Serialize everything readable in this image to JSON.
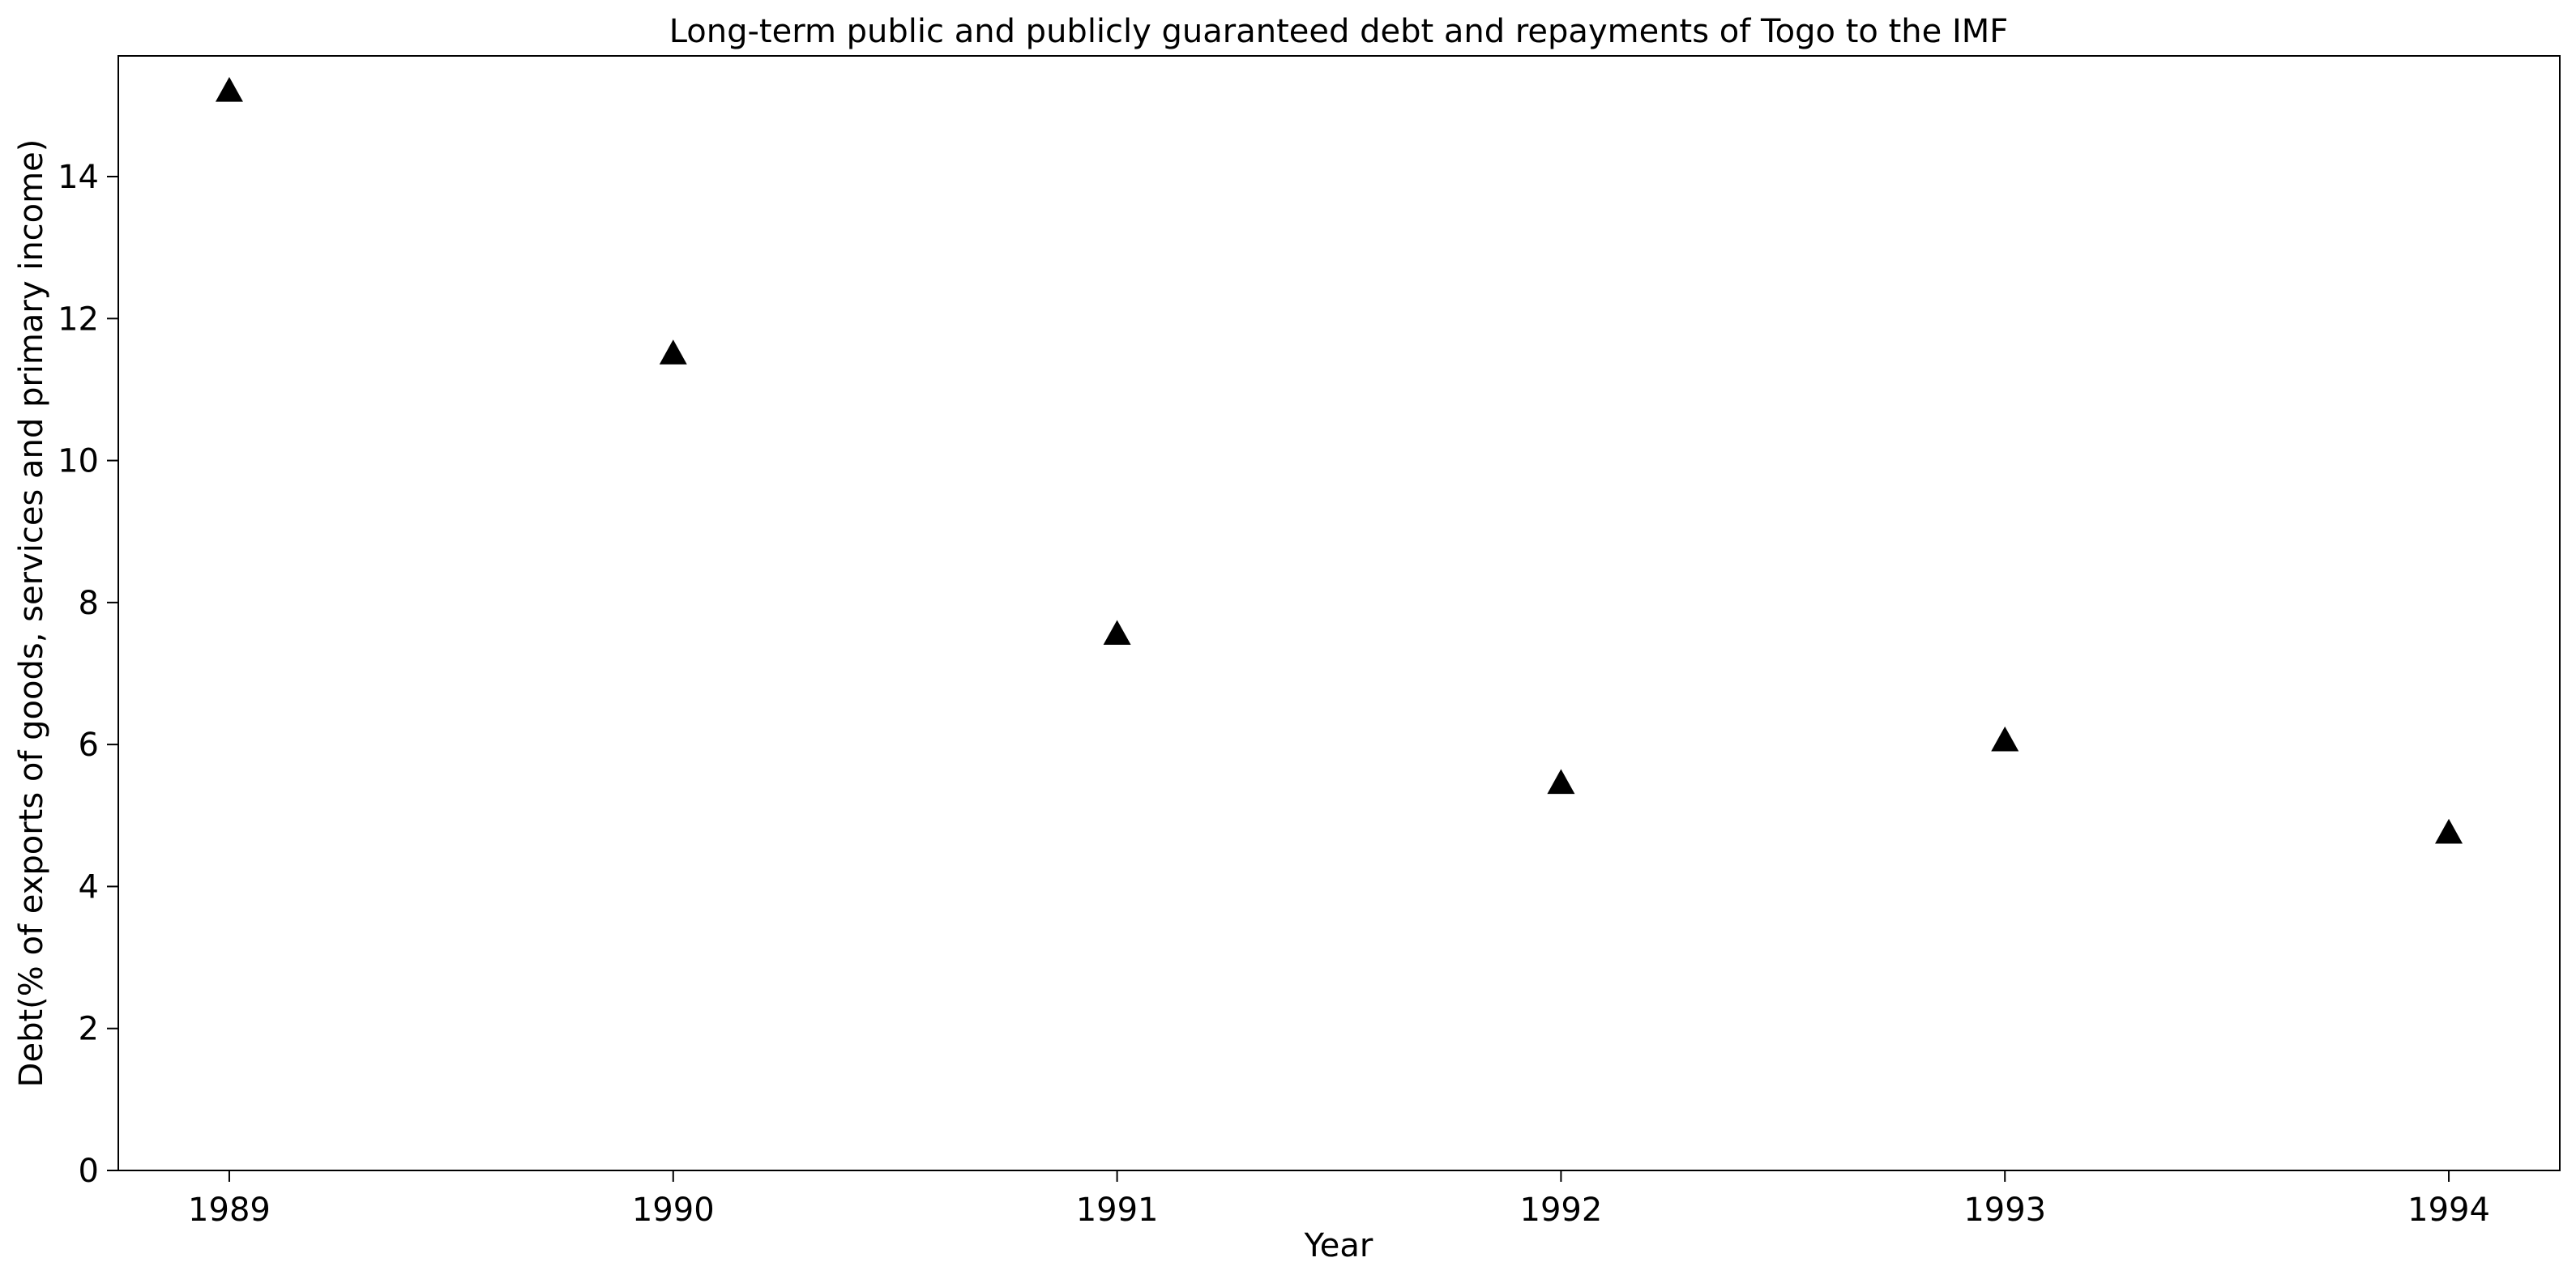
{
  "chart_data": {
    "type": "scatter",
    "title": "Long-term public and publicly guaranteed debt and repayments of Togo to the IMF",
    "xlabel": "Year",
    "ylabel": "Debt(% of exports of goods, services and primary income)",
    "x": [
      1989,
      1990,
      1991,
      1992,
      1993,
      1994
    ],
    "y": [
      15.2,
      11.5,
      7.55,
      5.45,
      6.05,
      4.75
    ],
    "xlim": [
      1988.75,
      1994.25
    ],
    "ylim": [
      0,
      15.7
    ],
    "xticks": [
      1989,
      1990,
      1991,
      1992,
      1993,
      1994
    ],
    "yticks": [
      0,
      2,
      4,
      6,
      8,
      10,
      12,
      14
    ],
    "marker": "triangle-up",
    "marker_color": "#000000",
    "grid": false
  }
}
